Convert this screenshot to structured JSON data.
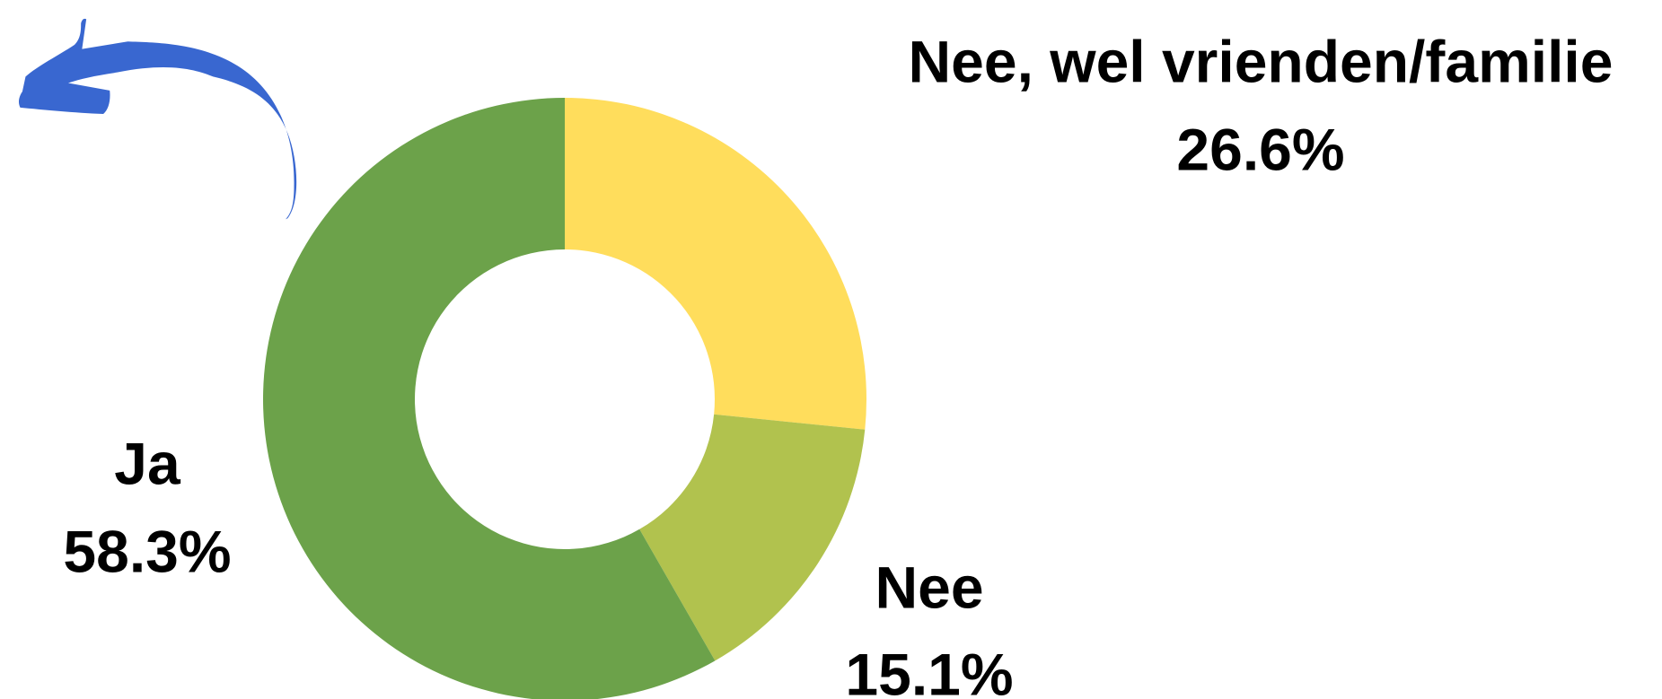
{
  "chart_data": {
    "type": "donut",
    "categories": [
      "Nee, wel vrienden/familie",
      "Nee",
      "Ja"
    ],
    "values": [
      26.6,
      15.1,
      58.3
    ],
    "value_labels": [
      "26.6%",
      "15.1%",
      "58.3%"
    ],
    "colors": [
      "#ffdd5c",
      "#b1c24e",
      "#6ca24a"
    ]
  }
}
